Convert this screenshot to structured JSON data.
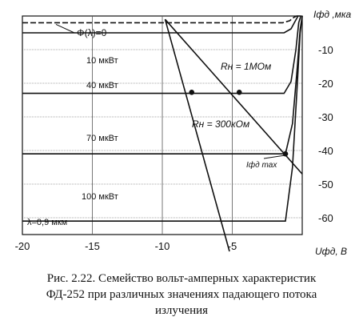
{
  "chart_data": {
    "type": "line",
    "title": "",
    "xlabel": "Uфд, В",
    "ylabel": "Iфд ,мка",
    "xlim": [
      -20,
      0
    ],
    "ylim": [
      -65,
      0
    ],
    "x_ticks": [
      -20,
      -15,
      -10,
      -5
    ],
    "x_tick_labels": [
      "-20",
      "-15",
      "-10",
      "-5"
    ],
    "y_ticks": [
      -10,
      -20,
      -30,
      -40,
      -50,
      -60
    ],
    "y_tick_labels": [
      "-10",
      "-20",
      "-30",
      "-40",
      "-50",
      "-60"
    ],
    "grid": true,
    "series": [
      {
        "name": "Φ(λ)=0",
        "x": [
          -20,
          -1.4,
          -0.9,
          -0.6,
          -0.4,
          -0.2
        ],
        "y": [
          -2,
          -2,
          -1.4,
          -0.4,
          0,
          0
        ]
      },
      {
        "name": "10 мкВт",
        "x": [
          -20,
          -1.3,
          -0.8,
          -0.5,
          -0.3,
          -0.1
        ],
        "y": [
          -5,
          -5,
          -3.8,
          -1.5,
          0,
          0
        ]
      },
      {
        "name": "40 мкВт",
        "x": [
          -20,
          -1.3,
          -0.8,
          -0.45,
          -0.25,
          -0.1
        ],
        "y": [
          -23,
          -23,
          -19.5,
          -10,
          -2,
          0
        ]
      },
      {
        "name": "70 мкВт",
        "x": [
          -20,
          -1.2,
          -0.7,
          -0.35,
          -0.15,
          0
        ],
        "y": [
          -41,
          -41,
          -32,
          -15,
          -4,
          0
        ]
      },
      {
        "name": "100 мкВт",
        "x": [
          -20,
          -1.2,
          -0.7,
          -0.35,
          -0.15,
          0
        ],
        "y": [
          -61,
          -61,
          -45,
          -20,
          -5,
          0
        ]
      }
    ],
    "load_lines": [
      {
        "name": "Rн = 1МОм",
        "x": [
          -9.8,
          0
        ],
        "y": [
          -1,
          -47
        ]
      },
      {
        "name": "Rн = 300кОм",
        "x": [
          -9.8,
          -5.2
        ],
        "y": [
          -1,
          -70
        ]
      }
    ],
    "points": [
      {
        "x": [
          -7.9
        ],
        "y": [
          -22.7
        ]
      },
      {
        "x": [
          -4.5
        ],
        "y": [
          -22.7
        ]
      },
      {
        "x": [
          -1.2
        ],
        "y": [
          -41
        ]
      }
    ],
    "annotations": [
      {
        "text": "Φ(λ)=0"
      },
      {
        "text": "10 мкВт"
      },
      {
        "text": "40 мкВт"
      },
      {
        "text": "70 мкВт"
      },
      {
        "text": "100 мкВт"
      },
      {
        "text": "Rн = 1МОм"
      },
      {
        "text": "Rн = 300кОм"
      },
      {
        "text": "Iфд max"
      },
      {
        "text": "λ=0,9 мкм"
      }
    ],
    "colors": {
      "ink": "#111111",
      "grid": "#555555"
    }
  },
  "caption": {
    "line1": "Рис. 2.22. Семейство вольт-амперных характеристик",
    "line2": "ФД-252 при различных значениях падающего потока",
    "line3": "излучения"
  }
}
